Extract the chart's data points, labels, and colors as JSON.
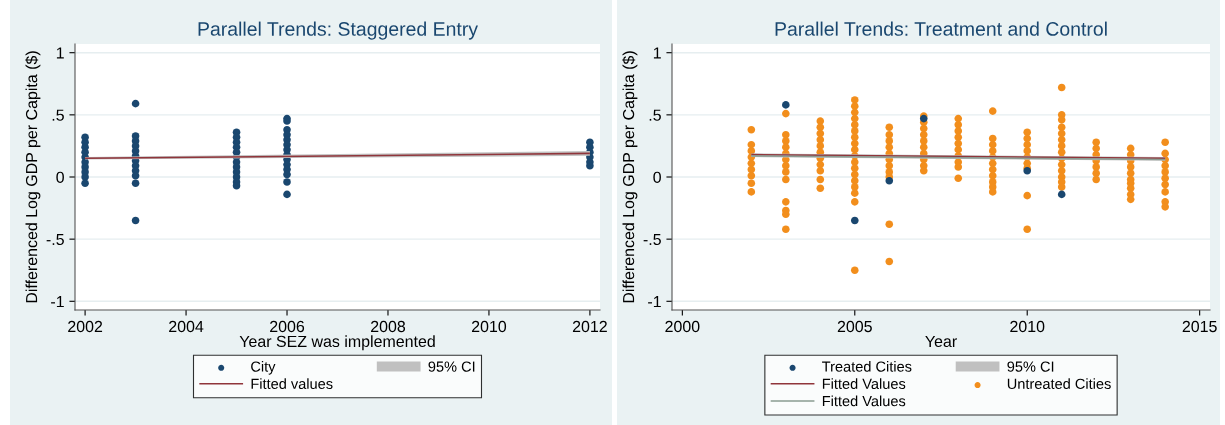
{
  "chart_data": [
    {
      "type": "scatter",
      "title": "Parallel Trends: Staggered Entry",
      "xlabel": "Year SEZ was implemented",
      "ylabel": "Differenced Log GDP per Capita ($)",
      "xlim": [
        2001.8,
        2012.2
      ],
      "xticks": [
        2002,
        2004,
        2006,
        2008,
        2010,
        2012
      ],
      "ylim": [
        -1.07,
        1.07
      ],
      "yticks": [
        {
          "value": -1,
          "label": "-1"
        },
        {
          "value": -0.5,
          "label": "-.5"
        },
        0,
        {
          "value": 0.5,
          "label": ".5"
        },
        1
      ],
      "grid": "y",
      "legend": "bottom",
      "line_style": "solid",
      "series": [
        {
          "name": "City",
          "marker": "circle",
          "color": "#1a476f",
          "x": [
            2002,
            2002,
            2002,
            2002,
            2002,
            2002,
            2002,
            2002,
            2002,
            2002,
            2003,
            2003,
            2003,
            2003,
            2003,
            2003,
            2003,
            2003,
            2003,
            2003,
            2003,
            2003,
            2005,
            2005,
            2005,
            2005,
            2005,
            2005,
            2005,
            2005,
            2005,
            2005,
            2005,
            2005,
            2006,
            2006,
            2006,
            2006,
            2006,
            2006,
            2006,
            2006,
            2006,
            2006,
            2006,
            2006,
            2006,
            2006,
            2012,
            2012,
            2012,
            2012,
            2012,
            2012
          ],
          "values": [
            0.32,
            0.28,
            0.24,
            0.2,
            0.16,
            0.12,
            0.08,
            0.04,
            0,
            -0.05,
            0.59,
            0.33,
            0.29,
            0.25,
            0.21,
            0.17,
            0.13,
            0.09,
            0.05,
            0.01,
            -0.05,
            -0.35,
            0.36,
            0.32,
            0.28,
            0.24,
            0.2,
            0.16,
            0.12,
            0.08,
            0.04,
            0,
            -0.04,
            -0.07,
            0.47,
            0.45,
            0.38,
            0.34,
            0.3,
            0.26,
            0.22,
            0.18,
            0.14,
            0.1,
            0.06,
            0.02,
            -0.04,
            -0.14,
            0.28,
            0.24,
            0.2,
            0.16,
            0.12,
            0.09
          ]
        },
        {
          "name": "95% CI",
          "type": "area",
          "color": "#c0c0c0"
        },
        {
          "name": "Fitted values",
          "type": "line",
          "color": "#90353b",
          "x": [
            2002,
            2012
          ],
          "values": [
            0.15,
            0.19
          ],
          "lower": [
            0.14,
            0.17
          ],
          "upper": [
            0.16,
            0.21
          ]
        }
      ]
    },
    {
      "type": "scatter",
      "title": "Parallel Trends: Treatment and Control",
      "xlabel": "Year",
      "ylabel": "Differenced Log GDP per Capita ($)",
      "xlim": [
        1999.7,
        2015.3
      ],
      "xticks": [
        2000,
        2005,
        2010,
        2015
      ],
      "ylim": [
        -1.07,
        1.07
      ],
      "yticks": [
        {
          "value": -1,
          "label": "-1"
        },
        {
          "value": -0.5,
          "label": "-.5"
        },
        0,
        {
          "value": 0.5,
          "label": ".5"
        },
        1
      ],
      "grid": "y",
      "legend": "bottom",
      "line_style": "solid",
      "series": [
        {
          "name": "Treated Cities",
          "marker": "circle",
          "color": "#1a476f",
          "x": [
            2003,
            2005,
            2006,
            2007,
            2010,
            2011
          ],
          "values": [
            0.58,
            -0.35,
            -0.03,
            0.47,
            0.05,
            -0.14
          ]
        },
        {
          "name": "95% CI",
          "type": "area",
          "color": "#c0c0c0"
        },
        {
          "name": "Fitted Values",
          "type": "line",
          "color": "#90353b",
          "x": [
            2002,
            2014
          ],
          "values": [
            0.18,
            0.15
          ]
        },
        {
          "name": "Untreated Cities",
          "marker": "circle",
          "color": "#f28e1c",
          "x": [
            2002,
            2002,
            2002,
            2002,
            2002,
            2002,
            2002,
            2002,
            2002,
            2003,
            2003,
            2003,
            2003,
            2003,
            2003,
            2003,
            2003,
            2003,
            2003,
            2003,
            2003,
            2003,
            2004,
            2004,
            2004,
            2004,
            2004,
            2004,
            2004,
            2004,
            2004,
            2004,
            2004,
            2005,
            2005,
            2005,
            2005,
            2005,
            2005,
            2005,
            2005,
            2005,
            2005,
            2005,
            2005,
            2005,
            2005,
            2005,
            2005,
            2005,
            2005,
            2006,
            2006,
            2006,
            2006,
            2006,
            2006,
            2006,
            2006,
            2006,
            2006,
            2006,
            2007,
            2007,
            2007,
            2007,
            2007,
            2007,
            2007,
            2007,
            2007,
            2007,
            2008,
            2008,
            2008,
            2008,
            2008,
            2008,
            2008,
            2008,
            2008,
            2008,
            2009,
            2009,
            2009,
            2009,
            2009,
            2009,
            2009,
            2009,
            2009,
            2009,
            2009,
            2010,
            2010,
            2010,
            2010,
            2010,
            2010,
            2010,
            2010,
            2010,
            2011,
            2011,
            2011,
            2011,
            2011,
            2011,
            2011,
            2011,
            2011,
            2011,
            2011,
            2011,
            2011,
            2011,
            2012,
            2012,
            2012,
            2012,
            2012,
            2012,
            2012,
            2013,
            2013,
            2013,
            2013,
            2013,
            2013,
            2013,
            2013,
            2013,
            2013,
            2014,
            2014,
            2014,
            2014,
            2014,
            2014,
            2014,
            2014,
            2014,
            2014
          ],
          "values": [
            0.38,
            0.26,
            0.21,
            0.16,
            0.11,
            0.06,
            0.01,
            -0.05,
            -0.12,
            0.51,
            0.34,
            0.29,
            0.24,
            0.19,
            0.14,
            0.09,
            0.04,
            -0.02,
            -0.2,
            -0.27,
            -0.3,
            -0.42,
            0.45,
            0.4,
            0.35,
            0.3,
            0.25,
            0.2,
            0.15,
            0.1,
            0.05,
            -0.02,
            -0.09,
            0.62,
            0.57,
            0.52,
            0.47,
            0.42,
            0.37,
            0.32,
            0.27,
            0.22,
            0.17,
            0.12,
            0.07,
            0.02,
            -0.03,
            -0.08,
            -0.13,
            -0.2,
            -0.75,
            0.4,
            0.34,
            0.29,
            0.24,
            0.19,
            0.14,
            0.09,
            0.04,
            0,
            -0.38,
            -0.68,
            0.49,
            0.44,
            0.39,
            0.34,
            0.29,
            0.24,
            0.19,
            0.14,
            0.09,
            0.05,
            0.47,
            0.42,
            0.37,
            0.32,
            0.27,
            0.22,
            0.17,
            0.12,
            0.08,
            -0.01,
            0.53,
            0.31,
            0.26,
            0.21,
            0.16,
            0.11,
            0.06,
            0.01,
            -0.04,
            -0.08,
            -0.12,
            0.36,
            0.31,
            0.26,
            0.21,
            0.16,
            0.11,
            0.07,
            -0.15,
            -0.42,
            0.72,
            0.5,
            0.46,
            0.4,
            0.35,
            0.3,
            0.25,
            0.2,
            0.15,
            0.1,
            0.05,
            0,
            -0.04,
            -0.08,
            0.28,
            0.23,
            0.18,
            0.13,
            0.08,
            0.03,
            -0.02,
            0.23,
            0.18,
            0.13,
            0.08,
            0.03,
            -0.02,
            -0.05,
            -0.09,
            -0.14,
            -0.18,
            0.28,
            0.19,
            0.14,
            0.09,
            0.04,
            -0.01,
            -0.06,
            -0.12,
            -0.2,
            -0.24
          ]
        },
        {
          "name": "Fitted Values",
          "type": "line",
          "color": "#8a9c92",
          "x": [
            2002,
            2014
          ],
          "values": [
            0.17,
            0.14
          ],
          "lower": [
            0.16,
            0.13
          ],
          "upper": [
            0.19,
            0.16
          ]
        }
      ]
    }
  ]
}
